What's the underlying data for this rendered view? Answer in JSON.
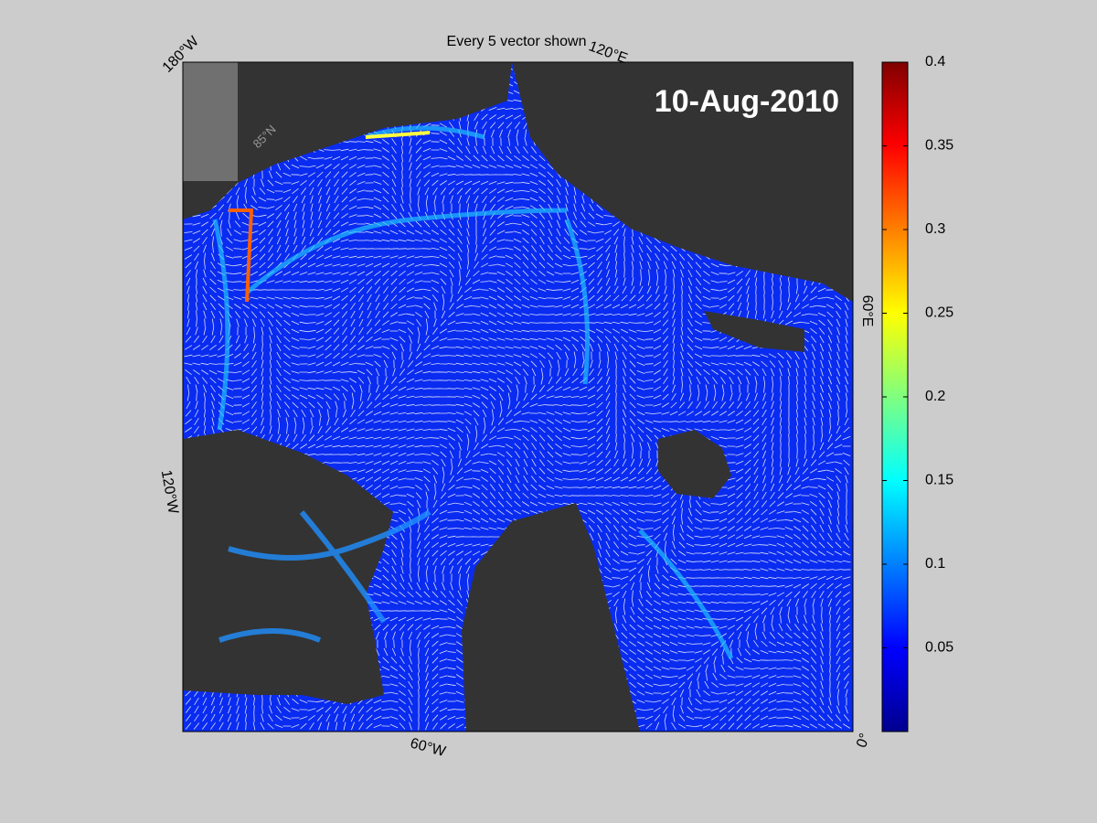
{
  "title": "Every 5 vector shown",
  "date_label": "10-Aug-2010",
  "map_labels": {
    "lon_180W": "180°W",
    "lon_120E": "120°E",
    "lon_60E": "60°E",
    "lon_0": "0°",
    "lon_60W": "60°W",
    "lon_120W": "120°W",
    "lat_85N": "85°N"
  },
  "colorbar": {
    "lim": [
      0,
      0.4
    ],
    "ticks": [
      0.05,
      0.1,
      0.15,
      0.2,
      0.25,
      0.3,
      0.35,
      0.4
    ]
  }
}
